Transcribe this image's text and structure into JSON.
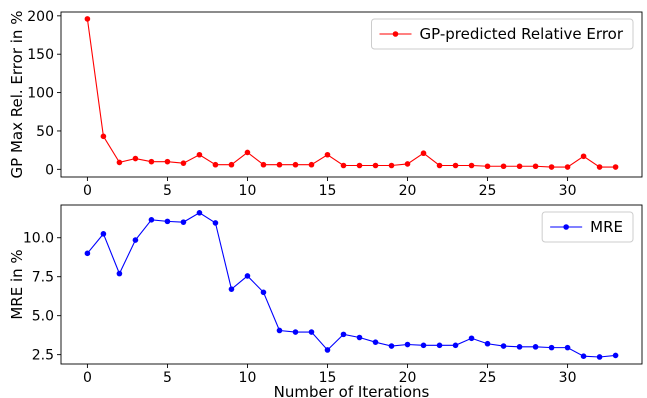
{
  "chart_data": [
    {
      "type": "line",
      "xlabel": "",
      "ylabel": "GP Max Rel. Error in %",
      "xlim": [
        -1.65,
        34.65
      ],
      "ylim": [
        -10,
        205
      ],
      "xticks": [
        0,
        5,
        10,
        15,
        20,
        25,
        30
      ],
      "yticks": [
        0,
        50,
        100,
        150,
        200
      ],
      "ytick_labels": [
        "0",
        "50",
        "100",
        "150",
        "200"
      ],
      "legend_position": "top-right",
      "grid": false,
      "series": [
        {
          "name": "GP-predicted Relative Error",
          "color": "#ff0000",
          "x": [
            0,
            1,
            2,
            3,
            4,
            5,
            6,
            7,
            8,
            9,
            10,
            11,
            12,
            13,
            14,
            15,
            16,
            17,
            18,
            19,
            20,
            21,
            22,
            23,
            24,
            25,
            26,
            27,
            28,
            29,
            30,
            31,
            32,
            33
          ],
          "values": [
            196,
            43,
            9,
            14,
            10,
            10,
            8,
            19,
            6,
            6,
            22,
            6,
            6,
            6,
            6,
            19,
            5,
            5,
            5,
            5,
            7,
            21,
            5,
            5,
            5,
            4,
            4,
            4,
            4,
            3,
            3,
            17,
            3,
            3
          ]
        }
      ]
    },
    {
      "type": "line",
      "xlabel": "Number of Iterations",
      "ylabel": "MRE in %",
      "xlim": [
        -1.65,
        34.65
      ],
      "ylim": [
        1.9,
        12.1
      ],
      "xticks": [
        0,
        5,
        10,
        15,
        20,
        25,
        30
      ],
      "yticks": [
        2.5,
        5.0,
        7.5,
        10.0
      ],
      "ytick_labels": [
        "2.5",
        "5.0",
        "7.5",
        "10.0"
      ],
      "legend_position": "top-right",
      "grid": false,
      "series": [
        {
          "name": "MRE",
          "color": "#0000ff",
          "x": [
            0,
            1,
            2,
            3,
            4,
            5,
            6,
            7,
            8,
            9,
            10,
            11,
            12,
            13,
            14,
            15,
            16,
            17,
            18,
            19,
            20,
            21,
            22,
            23,
            24,
            25,
            26,
            27,
            28,
            29,
            30,
            31,
            32,
            33
          ],
          "values": [
            9.0,
            10.25,
            7.7,
            9.85,
            11.15,
            11.05,
            11.0,
            11.6,
            10.95,
            6.7,
            7.55,
            6.5,
            4.05,
            3.95,
            3.95,
            2.8,
            3.8,
            3.6,
            3.3,
            3.05,
            3.15,
            3.1,
            3.1,
            3.1,
            3.55,
            3.2,
            3.05,
            3.0,
            3.0,
            2.95,
            2.95,
            2.4,
            2.35,
            2.45
          ]
        }
      ]
    }
  ]
}
